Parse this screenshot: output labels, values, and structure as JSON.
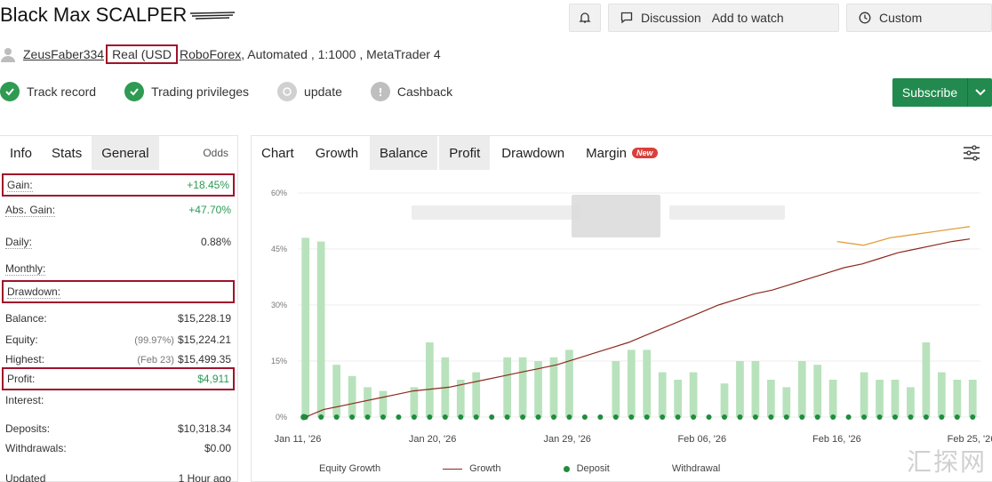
{
  "header": {
    "title": "Black Max SCALPER",
    "buttons": {
      "bell_icon": "bell-icon",
      "discuss_label": "Discussion",
      "watch_label": "Add to watch",
      "custom_label": "Custom"
    }
  },
  "meta": {
    "username": "ZeusFaber334",
    "account_type": "Real (USD",
    "broker": "RoboForex",
    "details": ", Automated , 1:1000 , MetaTrader 4"
  },
  "badges": [
    {
      "label": "Track record",
      "icon": "check-icon"
    },
    {
      "label": "Trading privileges",
      "icon": "check-icon"
    },
    {
      "label": "update",
      "icon": "clock-icon"
    },
    {
      "label": "Cashback",
      "icon": "exclamation-icon"
    }
  ],
  "subscribe": {
    "label": "Subscribe"
  },
  "left_tabs": [
    "Info",
    "Stats",
    "General"
  ],
  "left_tab_extra": "Odds",
  "stats": [
    {
      "label": "Gain:",
      "value": "+18.45%",
      "green": true,
      "boxed": true
    },
    {
      "label": "Abs. Gain:",
      "value": "+47.70%",
      "green": true
    },
    {
      "label": "Daily:",
      "value": "0.88%"
    },
    {
      "label": "Monthly:",
      "value": ""
    },
    {
      "label": "Drawdown:",
      "value": "",
      "green": true,
      "boxed": true
    },
    {
      "label": "Balance:",
      "value": "$15,228.19"
    },
    {
      "label": "Equity:",
      "sub": "(99.97%)",
      "value": "$15,224.21"
    },
    {
      "label": "Highest:",
      "sub": "(Feb 23)",
      "value": "$15,499.35"
    },
    {
      "label": "Profit:",
      "value": "$4,911",
      "green": true,
      "boxed": true
    },
    {
      "label": "Interest:",
      "value": ""
    },
    {
      "label": "Deposits:",
      "value": "$10,318.34"
    },
    {
      "label": "Withdrawals:",
      "value": "$0.00"
    },
    {
      "label": "Updated",
      "value": "1 Hour ago"
    }
  ],
  "chart_tabs": [
    {
      "label": "Chart",
      "shaded": false
    },
    {
      "label": "Growth",
      "shaded": false
    },
    {
      "label": "Balance",
      "shaded": true
    },
    {
      "label": "Profit",
      "shaded": true
    },
    {
      "label": "Drawdown",
      "shaded": false
    },
    {
      "label": "Margin",
      "shaded": false,
      "badge": "New"
    }
  ],
  "colors": {
    "bar": "#b8e2bc",
    "growth_line": "#8b2a1f",
    "equity_line": "#e0a040",
    "deposit_dot": "#1f8c3e",
    "accent_red": "#a0122a",
    "subscribe_green": "#228a4e"
  },
  "chart_data": {
    "type": "bar",
    "ylim": [
      0,
      60
    ],
    "yticks": [
      "60%",
      "45%",
      "30%",
      "15%",
      "0%"
    ],
    "xticks": [
      "Jan 11, '26",
      "Jan 20, '26",
      "Jan 29, '26",
      "Feb 06, '26",
      "Feb 16, '26",
      "Feb 25, '26"
    ],
    "bars": [
      48,
      47,
      14,
      11,
      8,
      7,
      0,
      8,
      20,
      16,
      10,
      12,
      0,
      16,
      16,
      15,
      16,
      18,
      0,
      0,
      15,
      18,
      18,
      12,
      10,
      12,
      0,
      9,
      15,
      15,
      10,
      8,
      15,
      14,
      10,
      0,
      12,
      10,
      10,
      8,
      20,
      12,
      10,
      10
    ],
    "growth_line": [
      0,
      2,
      3,
      4,
      5,
      6,
      7,
      7.5,
      8,
      9,
      10,
      11,
      12,
      13,
      14,
      15.5,
      17,
      18.5,
      20,
      22,
      24,
      26,
      28,
      30,
      31.5,
      33,
      34,
      35.5,
      37,
      38.5,
      40,
      41,
      42.5,
      44,
      45,
      46,
      47,
      47.7
    ],
    "equity_segment": [
      47,
      46.5,
      46,
      47,
      48,
      48.5,
      49,
      49.5,
      50,
      50.5,
      51
    ],
    "deposit_markers": 44,
    "legend": [
      "Equity Growth",
      "Growth",
      "Deposit",
      "Withdrawal"
    ]
  }
}
